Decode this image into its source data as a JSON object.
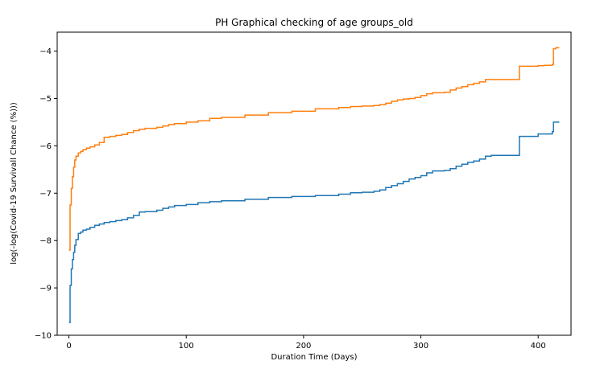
{
  "chart_data": {
    "type": "line",
    "title": "PH Graphical checking of age groups_old",
    "xlabel": "Duration Time  (Days)",
    "ylabel": "log(-log(Covid-19 Survivall Chance (%)))",
    "xlim": [
      -10,
      428
    ],
    "ylim": [
      -10.0,
      -3.6
    ],
    "xticks": [
      0,
      100,
      200,
      300,
      400
    ],
    "yticks": [
      -10,
      -9,
      -8,
      -7,
      -6,
      -5,
      -4
    ],
    "grid": false,
    "series": [
      {
        "color": "#1f77b4",
        "x": [
          0,
          1,
          2,
          3,
          4,
          5,
          6,
          8,
          10,
          12,
          15,
          18,
          22,
          26,
          30,
          35,
          40,
          45,
          50,
          55,
          60,
          65,
          75,
          80,
          85,
          90,
          100,
          110,
          120,
          130,
          150,
          170,
          190,
          210,
          230,
          240,
          250,
          260,
          265,
          270,
          275,
          280,
          285,
          290,
          295,
          300,
          305,
          310,
          320,
          325,
          330,
          335,
          340,
          345,
          350,
          355,
          360,
          370,
          380,
          383,
          384,
          390,
          395,
          400,
          405,
          410,
          412,
          413,
          415,
          418
        ],
        "y": [
          -9.73,
          -8.95,
          -8.6,
          -8.4,
          -8.25,
          -8.1,
          -7.98,
          -7.85,
          -7.82,
          -7.78,
          -7.76,
          -7.72,
          -7.68,
          -7.65,
          -7.62,
          -7.6,
          -7.58,
          -7.56,
          -7.52,
          -7.47,
          -7.4,
          -7.39,
          -7.36,
          -7.32,
          -7.29,
          -7.26,
          -7.24,
          -7.2,
          -7.18,
          -7.16,
          -7.13,
          -7.09,
          -7.07,
          -7.05,
          -7.02,
          -6.99,
          -6.98,
          -6.96,
          -6.93,
          -6.88,
          -6.84,
          -6.8,
          -6.75,
          -6.7,
          -6.67,
          -6.63,
          -6.57,
          -6.53,
          -6.52,
          -6.48,
          -6.43,
          -6.39,
          -6.35,
          -6.32,
          -6.28,
          -6.22,
          -6.2,
          -6.2,
          -6.2,
          -6.2,
          -5.8,
          -5.8,
          -5.8,
          -5.75,
          -5.75,
          -5.75,
          -5.7,
          -5.5,
          -5.5,
          -5.5
        ]
      },
      {
        "color": "#ff7f0e",
        "x": [
          0,
          1,
          2,
          3,
          4,
          5,
          6,
          8,
          10,
          12,
          15,
          18,
          22,
          26,
          30,
          35,
          40,
          45,
          50,
          55,
          60,
          65,
          75,
          80,
          85,
          90,
          100,
          110,
          120,
          130,
          150,
          170,
          190,
          210,
          230,
          240,
          250,
          260,
          265,
          270,
          275,
          280,
          285,
          290,
          295,
          300,
          305,
          310,
          320,
          325,
          330,
          335,
          340,
          345,
          350,
          355,
          360,
          370,
          380,
          383,
          384,
          390,
          395,
          400,
          405,
          410,
          412,
          413,
          415,
          418
        ],
        "y": [
          -8.2,
          -7.25,
          -6.9,
          -6.65,
          -6.45,
          -6.3,
          -6.22,
          -6.15,
          -6.12,
          -6.08,
          -6.05,
          -6.02,
          -5.98,
          -5.93,
          -5.82,
          -5.8,
          -5.78,
          -5.76,
          -5.72,
          -5.68,
          -5.65,
          -5.63,
          -5.61,
          -5.58,
          -5.55,
          -5.53,
          -5.5,
          -5.47,
          -5.42,
          -5.4,
          -5.35,
          -5.3,
          -5.27,
          -5.22,
          -5.19,
          -5.17,
          -5.16,
          -5.15,
          -5.13,
          -5.1,
          -5.06,
          -5.03,
          -5.01,
          -5.0,
          -4.98,
          -4.94,
          -4.9,
          -4.88,
          -4.87,
          -4.82,
          -4.78,
          -4.75,
          -4.71,
          -4.68,
          -4.65,
          -4.6,
          -4.6,
          -4.6,
          -4.6,
          -4.6,
          -4.32,
          -4.32,
          -4.32,
          -4.31,
          -4.3,
          -4.3,
          -4.28,
          -3.95,
          -3.93,
          -3.93
        ]
      }
    ]
  }
}
